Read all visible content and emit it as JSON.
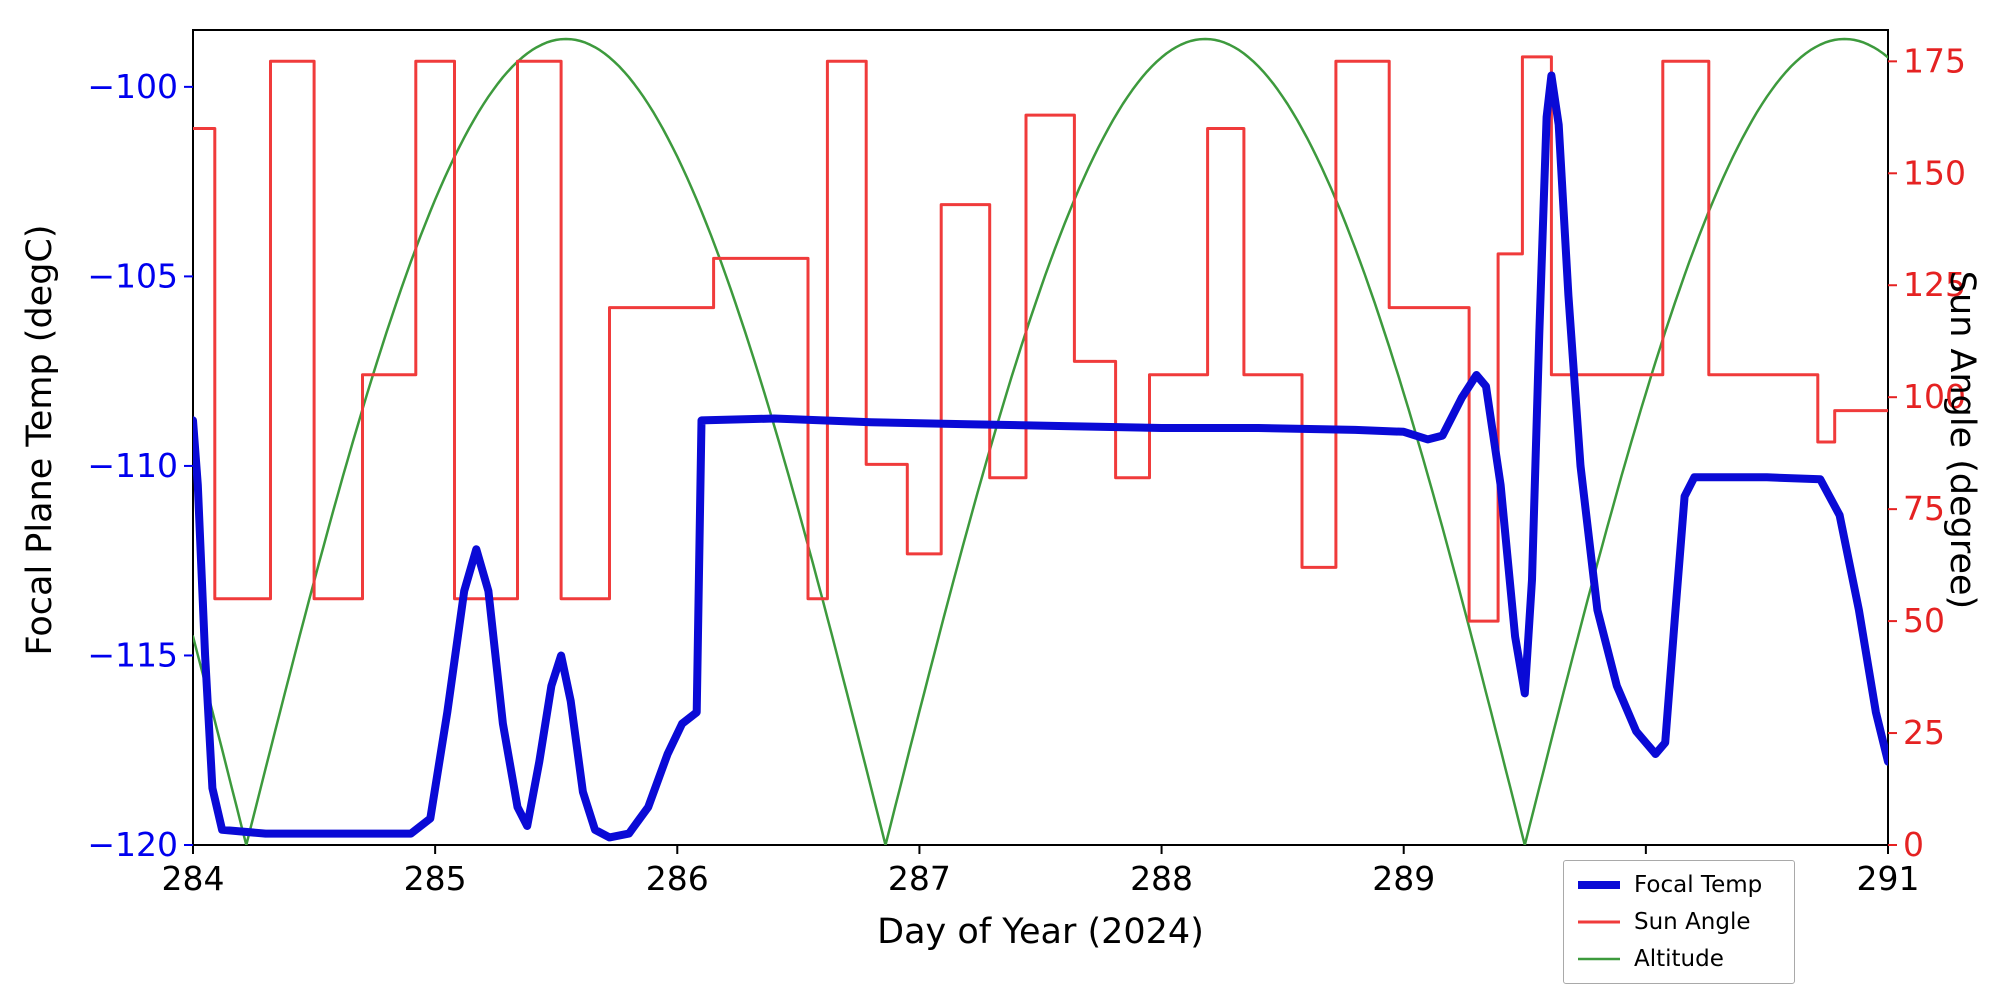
{
  "figure": {
    "background": "#ffffff"
  },
  "chart_data": {
    "type": "line",
    "title": "",
    "xlabel": "Day of Year (2024)",
    "ylabel_left": "Focal Plane Temp (degC)",
    "ylabel_right": "Sun Angle (degree)",
    "xlim": [
      284,
      291
    ],
    "ylim_left": [
      -120,
      -98.5
    ],
    "ylim_right": [
      0,
      182
    ],
    "grid": false,
    "xticks": {
      "values": [
        284,
        285,
        286,
        287,
        288,
        289,
        290,
        291
      ],
      "labels": [
        "284",
        "285",
        "286",
        "287",
        "288",
        "289",
        "290",
        "291"
      ],
      "color": "#000000"
    },
    "yticks_left": {
      "values": [
        -100,
        -105,
        -110,
        -115,
        -120
      ],
      "labels": [
        "−100",
        "−105",
        "−110",
        "−115",
        "−120"
      ],
      "color": "#0000ee"
    },
    "yticks_right": {
      "values": [
        0,
        25,
        50,
        75,
        100,
        125,
        150,
        175
      ],
      "labels": [
        "0",
        "25",
        "50",
        "75",
        "100",
        "125",
        "150",
        "175"
      ],
      "color": "#e52222"
    },
    "legend": {
      "position": "lower-right-outside",
      "items": [
        {
          "label": "Focal Temp",
          "color": "#0a0ad6",
          "width": 8
        },
        {
          "label": "Sun Angle",
          "color": "#f03b3b",
          "width": 3
        },
        {
          "label": "Altitude",
          "color": "#3d9a3d",
          "width": 2.5
        }
      ]
    },
    "series": [
      {
        "name": "Altitude",
        "axis": "right",
        "color": "#3d9a3d",
        "width": 2.5,
        "mode": "model",
        "model": {
          "kind": "abs-sine",
          "amplitude": 180,
          "zero": 284.22,
          "half_period": 2.64
        },
        "zeros": [
          284.22,
          286.86,
          289.5
        ],
        "peaks_x": [
          285.54,
          288.18,
          290.82
        ],
        "peak_value": 180
      },
      {
        "name": "Sun Angle",
        "axis": "right",
        "color": "#f03b3b",
        "width": 3,
        "mode": "step",
        "points": [
          [
            284.0,
            160
          ],
          [
            284.09,
            55
          ],
          [
            284.32,
            175
          ],
          [
            284.5,
            55
          ],
          [
            284.7,
            105
          ],
          [
            284.92,
            175
          ],
          [
            285.08,
            55
          ],
          [
            285.34,
            175
          ],
          [
            285.52,
            55
          ],
          [
            285.72,
            120
          ],
          [
            286.15,
            131
          ],
          [
            286.54,
            55
          ],
          [
            286.62,
            175
          ],
          [
            286.78,
            85
          ],
          [
            286.95,
            65
          ],
          [
            287.09,
            143
          ],
          [
            287.29,
            82
          ],
          [
            287.44,
            163
          ],
          [
            287.64,
            108
          ],
          [
            287.81,
            82
          ],
          [
            287.95,
            105
          ],
          [
            288.19,
            160
          ],
          [
            288.34,
            105
          ],
          [
            288.58,
            62
          ],
          [
            288.72,
            175
          ],
          [
            288.94,
            120
          ],
          [
            289.27,
            50
          ],
          [
            289.39,
            132
          ],
          [
            289.49,
            176
          ],
          [
            289.61,
            105
          ],
          [
            290.07,
            175
          ],
          [
            290.26,
            105
          ],
          [
            290.71,
            90
          ],
          [
            290.78,
            97
          ]
        ]
      },
      {
        "name": "Focal Temp",
        "axis": "left",
        "color": "#0a0ad6",
        "width": 8,
        "mode": "linear",
        "points": [
          [
            284.0,
            -108.8
          ],
          [
            284.02,
            -110.5
          ],
          [
            284.05,
            -115.0
          ],
          [
            284.08,
            -118.5
          ],
          [
            284.12,
            -119.6
          ],
          [
            284.3,
            -119.7
          ],
          [
            284.6,
            -119.7
          ],
          [
            284.9,
            -119.7
          ],
          [
            284.98,
            -119.3
          ],
          [
            285.05,
            -116.5
          ],
          [
            285.12,
            -113.3
          ],
          [
            285.17,
            -112.2
          ],
          [
            285.22,
            -113.3
          ],
          [
            285.28,
            -116.8
          ],
          [
            285.34,
            -119.0
          ],
          [
            285.38,
            -119.5
          ],
          [
            285.43,
            -117.8
          ],
          [
            285.48,
            -115.8
          ],
          [
            285.52,
            -115.0
          ],
          [
            285.56,
            -116.2
          ],
          [
            285.61,
            -118.6
          ],
          [
            285.66,
            -119.6
          ],
          [
            285.72,
            -119.8
          ],
          [
            285.8,
            -119.7
          ],
          [
            285.88,
            -119.0
          ],
          [
            285.96,
            -117.6
          ],
          [
            286.02,
            -116.8
          ],
          [
            286.08,
            -116.5
          ],
          [
            286.1,
            -108.8
          ],
          [
            286.4,
            -108.75
          ],
          [
            286.8,
            -108.85
          ],
          [
            287.2,
            -108.9
          ],
          [
            287.6,
            -108.95
          ],
          [
            288.0,
            -109.0
          ],
          [
            288.4,
            -109.0
          ],
          [
            288.8,
            -109.05
          ],
          [
            289.0,
            -109.1
          ],
          [
            289.1,
            -109.3
          ],
          [
            289.16,
            -109.2
          ],
          [
            289.24,
            -108.2
          ],
          [
            289.3,
            -107.6
          ],
          [
            289.34,
            -107.9
          ],
          [
            289.4,
            -110.5
          ],
          [
            289.46,
            -114.5
          ],
          [
            289.5,
            -116.0
          ],
          [
            289.53,
            -113.0
          ],
          [
            289.56,
            -106.5
          ],
          [
            289.59,
            -100.8
          ],
          [
            289.61,
            -99.7
          ],
          [
            289.64,
            -101.0
          ],
          [
            289.68,
            -105.5
          ],
          [
            289.73,
            -110.0
          ],
          [
            289.8,
            -113.8
          ],
          [
            289.88,
            -115.8
          ],
          [
            289.96,
            -117.0
          ],
          [
            290.04,
            -117.6
          ],
          [
            290.08,
            -117.3
          ],
          [
            290.12,
            -114.0
          ],
          [
            290.16,
            -110.8
          ],
          [
            290.2,
            -110.3
          ],
          [
            290.5,
            -110.3
          ],
          [
            290.72,
            -110.35
          ],
          [
            290.8,
            -111.3
          ],
          [
            290.88,
            -113.8
          ],
          [
            290.95,
            -116.5
          ],
          [
            291.0,
            -117.8
          ]
        ]
      }
    ]
  }
}
